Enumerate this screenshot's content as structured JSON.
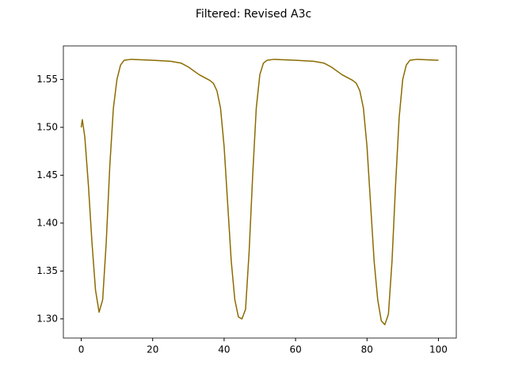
{
  "chart_data": {
    "type": "line",
    "title": "Filtered: Revised A3c",
    "x": [
      0,
      0.3,
      1,
      2,
      3,
      4,
      5,
      6,
      7,
      8,
      9,
      10,
      11,
      12,
      14,
      20,
      25,
      28,
      30,
      33,
      36,
      37,
      38,
      39,
      40,
      41,
      42,
      43,
      44,
      45,
      46,
      47,
      48,
      49,
      50,
      51,
      52,
      54,
      60,
      65,
      68,
      70,
      73,
      76,
      77,
      78,
      79,
      80,
      81,
      82,
      83,
      84,
      85,
      86,
      87,
      88,
      89,
      90,
      91,
      92,
      94,
      100
    ],
    "series": [
      {
        "color": "#8b6b00",
        "values": [
          1.5,
          1.508,
          1.49,
          1.44,
          1.38,
          1.33,
          1.307,
          1.32,
          1.38,
          1.46,
          1.52,
          1.55,
          1.565,
          1.57,
          1.571,
          1.57,
          1.569,
          1.567,
          1.563,
          1.555,
          1.549,
          1.546,
          1.538,
          1.52,
          1.48,
          1.42,
          1.36,
          1.32,
          1.302,
          1.3,
          1.31,
          1.37,
          1.45,
          1.52,
          1.555,
          1.567,
          1.57,
          1.571,
          1.57,
          1.569,
          1.567,
          1.563,
          1.555,
          1.549,
          1.546,
          1.538,
          1.52,
          1.48,
          1.42,
          1.36,
          1.32,
          1.298,
          1.294,
          1.305,
          1.36,
          1.44,
          1.51,
          1.55,
          1.565,
          1.57,
          1.571,
          1.57
        ]
      }
    ],
    "xlim": [
      -5,
      105
    ],
    "xticks": [
      0,
      20,
      40,
      60,
      80,
      100
    ],
    "ylim": [
      1.28,
      1.585
    ],
    "yticks": [
      {
        "value": 1.3,
        "label": "1.30"
      },
      {
        "value": 1.35,
        "label": "1.35"
      },
      {
        "value": 1.4,
        "label": "1.40"
      },
      {
        "value": 1.45,
        "label": "1.45"
      },
      {
        "value": 1.5,
        "label": "1.50"
      },
      {
        "value": 1.55,
        "label": "1.55"
      }
    ],
    "grid": false
  }
}
